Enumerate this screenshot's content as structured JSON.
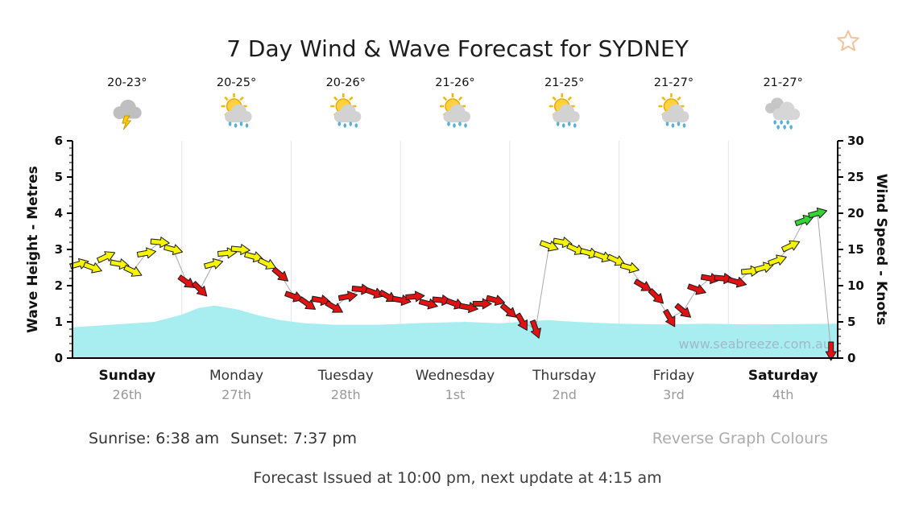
{
  "title": "7 Day Wind & Wave Forecast for SYDNEY",
  "watermark": "www.seabreeze.com.au",
  "footer": {
    "sunrise": "Sunrise: 6:38 am",
    "sunset": "Sunset: 7:37 pm",
    "reverse_link": "Reverse Graph Colours",
    "issued": "Forecast Issued at 10:00 pm, next update at 4:15 am"
  },
  "chart_data": {
    "type": "combo",
    "title": "7 Day Wind & Wave Forecast for SYDNEY",
    "legend": "none",
    "grid": "day separators only",
    "days": [
      {
        "name": "Sunday",
        "date": "26th",
        "temp": "20-23°",
        "icon": "storm",
        "bold": true
      },
      {
        "name": "Monday",
        "date": "27th",
        "temp": "20-25°",
        "icon": "sun-rain",
        "bold": false
      },
      {
        "name": "Tuesday",
        "date": "28th",
        "temp": "20-26°",
        "icon": "sun-rain",
        "bold": false
      },
      {
        "name": "Wednesday",
        "date": "1st",
        "temp": "21-26°",
        "icon": "sun-rain",
        "bold": false
      },
      {
        "name": "Thursday",
        "date": "2nd",
        "temp": "21-25°",
        "icon": "sun-rain",
        "bold": false
      },
      {
        "name": "Friday",
        "date": "3rd",
        "temp": "21-27°",
        "icon": "sun-rain",
        "bold": false
      },
      {
        "name": "Saturday",
        "date": "4th",
        "temp": "21-27°",
        "icon": "rain",
        "bold": true
      }
    ],
    "y_left": {
      "label": "Wave Height - Metres",
      "min": 0,
      "max": 6,
      "ticks": [
        0,
        1,
        2,
        3,
        4,
        5,
        6
      ]
    },
    "y_right": {
      "label": "Wind Speed - Knots",
      "min": 0,
      "max": 30,
      "ticks": [
        0,
        5,
        10,
        15,
        20,
        25,
        30
      ]
    },
    "series": [
      {
        "name": "Wind Speed",
        "type": "wind-arrows",
        "axis": "right",
        "units": "knots",
        "point_format": [
          "speed_knots",
          "colour_code",
          "arrow_rotation_deg"
        ],
        "colour_codes": {
          "Y": "yellow",
          "R": "red",
          "G": "green"
        },
        "points": [
          [
            13,
            "Y",
            -15
          ],
          [
            12.5,
            "Y",
            20
          ],
          [
            14,
            "Y",
            -25
          ],
          [
            13,
            "Y",
            10
          ],
          [
            12,
            "Y",
            25
          ],
          [
            14.5,
            "Y",
            -10
          ],
          [
            16,
            "Y",
            5
          ],
          [
            15,
            "Y",
            15
          ],
          [
            10.5,
            "R",
            35
          ],
          [
            9.5,
            "R",
            45
          ],
          [
            13,
            "Y",
            -15
          ],
          [
            14.5,
            "Y",
            -5
          ],
          [
            15,
            "Y",
            5
          ],
          [
            14,
            "Y",
            15
          ],
          [
            13,
            "Y",
            25
          ],
          [
            11.5,
            "R",
            40
          ],
          [
            8.5,
            "R",
            20
          ],
          [
            7.5,
            "R",
            35
          ],
          [
            8,
            "R",
            10
          ],
          [
            7,
            "R",
            30
          ],
          [
            8.5,
            "R",
            -10
          ],
          [
            9.5,
            "R",
            5
          ],
          [
            9,
            "R",
            20
          ],
          [
            8.5,
            "R",
            30
          ],
          [
            8,
            "R",
            10
          ],
          [
            8.5,
            "R",
            -5
          ],
          [
            7.5,
            "R",
            15
          ],
          [
            8,
            "R",
            5
          ],
          [
            7.5,
            "R",
            20
          ],
          [
            7,
            "R",
            10
          ],
          [
            7.5,
            "R",
            0
          ],
          [
            8,
            "R",
            15
          ],
          [
            6.5,
            "R",
            40
          ],
          [
            5,
            "R",
            60
          ],
          [
            4,
            "R",
            70
          ],
          [
            15.5,
            "Y",
            20
          ],
          [
            16,
            "Y",
            10
          ],
          [
            15,
            "Y",
            25
          ],
          [
            14.5,
            "Y",
            15
          ],
          [
            14,
            "Y",
            20
          ],
          [
            13.5,
            "Y",
            25
          ],
          [
            12.5,
            "Y",
            15
          ],
          [
            10,
            "R",
            30
          ],
          [
            8.5,
            "R",
            45
          ],
          [
            5.5,
            "R",
            60
          ],
          [
            6.5,
            "R",
            40
          ],
          [
            9.5,
            "R",
            20
          ],
          [
            11,
            "R",
            10
          ],
          [
            11,
            "R",
            5
          ],
          [
            10.5,
            "R",
            15
          ],
          [
            12,
            "Y",
            -5
          ],
          [
            12.5,
            "Y",
            -15
          ],
          [
            13.5,
            "Y",
            -20
          ],
          [
            15.5,
            "Y",
            -25
          ],
          [
            19,
            "G",
            -20
          ],
          [
            20,
            "G",
            -15
          ],
          [
            1,
            "R",
            90
          ]
        ]
      },
      {
        "name": "Wave Height",
        "type": "area",
        "axis": "left",
        "units": "metres",
        "point_format": [
          "day_offset",
          "height_m"
        ],
        "points": [
          [
            0,
            0.85
          ],
          [
            0.25,
            0.9
          ],
          [
            0.5,
            0.95
          ],
          [
            0.75,
            1.0
          ],
          [
            1.0,
            1.2
          ],
          [
            1.15,
            1.38
          ],
          [
            1.3,
            1.45
          ],
          [
            1.5,
            1.35
          ],
          [
            1.7,
            1.18
          ],
          [
            1.9,
            1.05
          ],
          [
            2.1,
            0.97
          ],
          [
            2.4,
            0.92
          ],
          [
            2.8,
            0.92
          ],
          [
            3.2,
            0.97
          ],
          [
            3.6,
            1.0
          ],
          [
            3.9,
            0.96
          ],
          [
            4.1,
            1.0
          ],
          [
            4.35,
            1.05
          ],
          [
            4.6,
            1.0
          ],
          [
            5.0,
            0.95
          ],
          [
            5.4,
            0.93
          ],
          [
            5.8,
            0.95
          ],
          [
            6.2,
            0.93
          ],
          [
            6.6,
            0.94
          ],
          [
            7,
            0.95
          ]
        ]
      }
    ],
    "colors": {
      "yellow": "#f7f400",
      "red": "#e01212",
      "green": "#35d435",
      "wave": "#a8eef0",
      "watermark": "#9db8cc",
      "star": "#f2c49b"
    }
  }
}
